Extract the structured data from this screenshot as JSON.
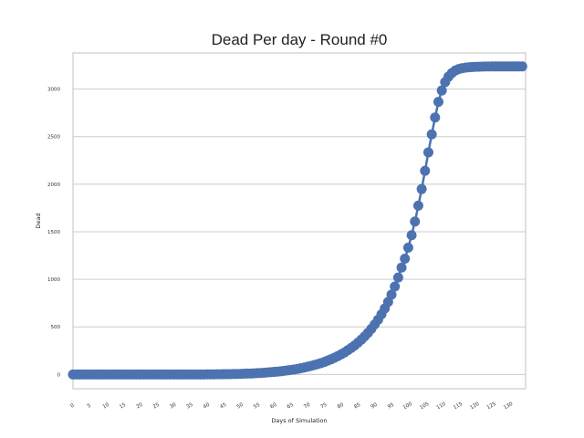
{
  "chart_data": {
    "type": "line",
    "title": "Dead Per day - Round #0",
    "xlabel": "Days of Simulation",
    "ylabel": "Dead",
    "xlim": [
      0,
      135
    ],
    "ylim": [
      -150,
      3380
    ],
    "x_ticks": [
      0,
      5,
      10,
      15,
      20,
      25,
      30,
      35,
      40,
      45,
      50,
      55,
      60,
      65,
      70,
      75,
      80,
      85,
      90,
      95,
      100,
      105,
      110,
      115,
      120,
      125,
      130
    ],
    "y_ticks": [
      0,
      500,
      1000,
      1500,
      2000,
      2500,
      3000
    ],
    "grid": "horizontal",
    "color": "#4c72b0",
    "series": [
      {
        "x": [
          0,
          1,
          2,
          3,
          4,
          5,
          6,
          7,
          8,
          9,
          10,
          11,
          12,
          13,
          14,
          15,
          16,
          17,
          18,
          19,
          20,
          21,
          22,
          23,
          24,
          25,
          26,
          27,
          28,
          29,
          30,
          31,
          32,
          33,
          34,
          35,
          36,
          37,
          38,
          39,
          40,
          41,
          42,
          43,
          44,
          45,
          46,
          47,
          48,
          49,
          50,
          51,
          52,
          53,
          54,
          55,
          56,
          57,
          58,
          59,
          60,
          61,
          62,
          63,
          64,
          65,
          66,
          67,
          68,
          69,
          70,
          71,
          72,
          73,
          74,
          75,
          76,
          77,
          78,
          79,
          80,
          81,
          82,
          83,
          84,
          85,
          86,
          87,
          88,
          89,
          90,
          91,
          92,
          93,
          94,
          95,
          96,
          97,
          98,
          99,
          100,
          101,
          102,
          103,
          104,
          105,
          106,
          107,
          108,
          109,
          110,
          111,
          112,
          113,
          114,
          115,
          116,
          117,
          118,
          119,
          120,
          121,
          122,
          123,
          124,
          125,
          126,
          127,
          128,
          129,
          130,
          131,
          132,
          133,
          134
        ],
        "values": [
          0,
          0,
          0,
          0,
          0,
          0,
          0,
          0,
          0,
          0,
          0,
          0,
          0,
          0,
          0,
          0,
          0,
          0,
          0,
          0,
          0,
          0,
          0,
          0,
          0,
          0,
          0,
          0,
          0,
          0,
          0,
          0,
          0,
          0,
          0,
          0,
          0,
          0,
          0,
          0,
          1,
          1,
          1,
          2,
          2,
          3,
          3,
          4,
          5,
          5,
          6,
          8,
          9,
          10,
          12,
          14,
          16,
          18,
          21,
          24,
          27,
          30,
          34,
          38,
          43,
          48,
          53,
          59,
          66,
          73,
          81,
          90,
          99,
          109,
          120,
          132,
          146,
          160,
          176,
          193,
          212,
          232,
          255,
          279,
          305,
          334,
          366,
          400,
          438,
          480,
          526,
          576,
          632,
          694,
          762,
          839,
          924,
          1019,
          1123,
          1217,
          1333,
          1464,
          1608,
          1774,
          1949,
          2140,
          2335,
          2524,
          2701,
          2866,
          2985,
          3073,
          3130,
          3168,
          3194,
          3210,
          3219,
          3225,
          3229,
          3232,
          3234,
          3235,
          3236,
          3237,
          3237,
          3238,
          3238,
          3238,
          3238,
          3238,
          3238,
          3238,
          3238,
          3238,
          3238
        ]
      }
    ]
  }
}
